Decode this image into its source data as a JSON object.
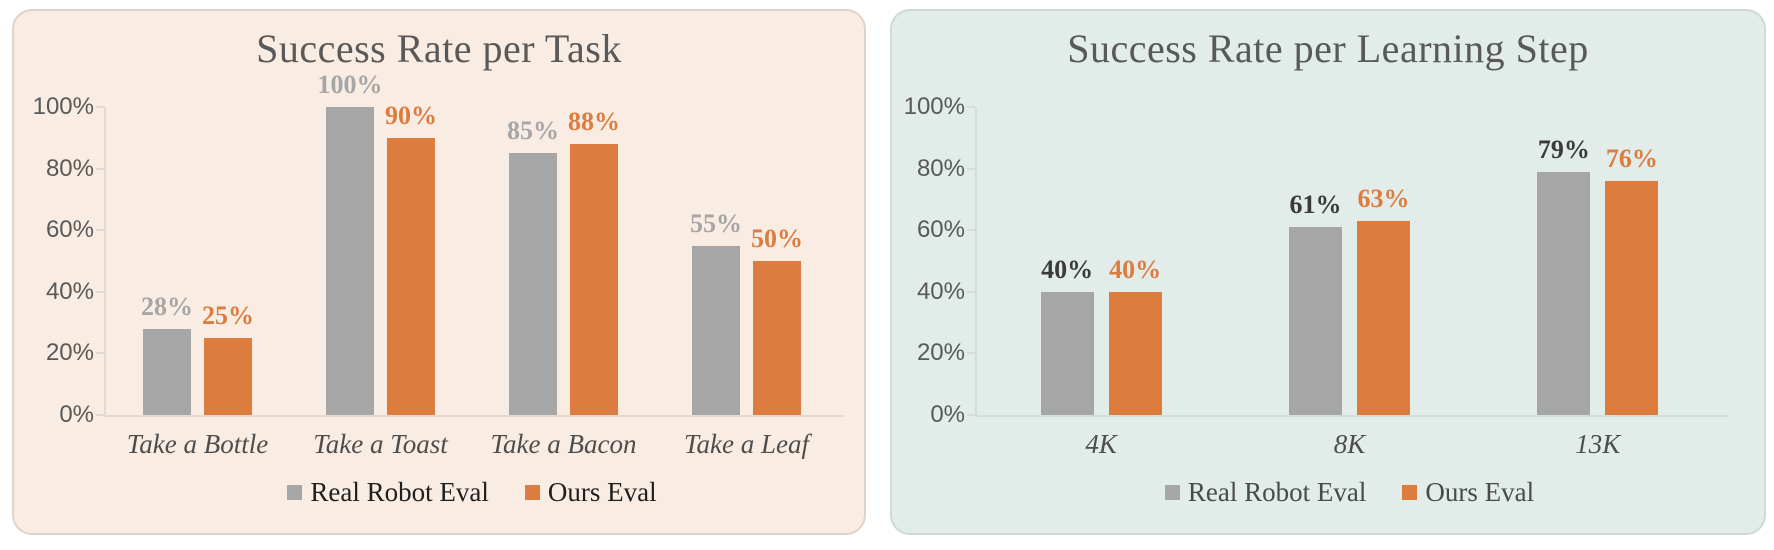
{
  "page": {
    "background": "#FFFFFF"
  },
  "chart_data": [
    {
      "type": "bar",
      "title": "Success Rate per Task",
      "categories": [
        "Take a Bottle",
        "Take a Toast",
        "Take a Bacon",
        "Take a Leaf"
      ],
      "series": [
        {
          "name": "Real Robot Eval",
          "values": [
            28,
            100,
            85,
            55
          ],
          "color": "#A6A6A6",
          "label_color": "#A6A6A6"
        },
        {
          "name": "Ours Eval",
          "values": [
            25,
            90,
            88,
            50
          ],
          "color": "#DD7C3F",
          "label_color": "#DD7C3F"
        }
      ],
      "value_suffix": "%",
      "ylim": [
        0,
        100
      ],
      "ytick_labels": [
        "100%",
        "80%",
        "60%",
        "40%",
        "20%",
        "0%"
      ],
      "grid": false,
      "legend_position": "bottom",
      "panel_bg": "#F9ECE3",
      "panel_border": "#DDD3CB",
      "axis_color": "#E2D9D2",
      "title_color": "#595959",
      "tick_label_color": "#595959",
      "category_label_color": "#4D4D4D",
      "legend_text_color": "#1F1F1F"
    },
    {
      "type": "bar",
      "title": "Success Rate per Learning Step",
      "categories": [
        "4K",
        "8K",
        "13K"
      ],
      "series": [
        {
          "name": "Real Robot Eval",
          "values": [
            40,
            61,
            79
          ],
          "color": "#A6A6A6",
          "label_color": "#3B3B3B"
        },
        {
          "name": "Ours Eval",
          "values": [
            40,
            63,
            76
          ],
          "color": "#DD7C3F",
          "label_color": "#DD7C3F"
        }
      ],
      "value_suffix": "%",
      "ylim": [
        0,
        100
      ],
      "ytick_labels": [
        "100%",
        "80%",
        "60%",
        "40%",
        "20%",
        "0%"
      ],
      "grid": false,
      "legend_position": "bottom",
      "panel_bg": "#E2ECE9",
      "panel_border": "#CFDAD7",
      "axis_color": "#D3DEDB",
      "title_color": "#595959",
      "tick_label_color": "#595959",
      "category_label_color": "#4D4D4D",
      "legend_text_color": "#4A4A4A"
    }
  ]
}
